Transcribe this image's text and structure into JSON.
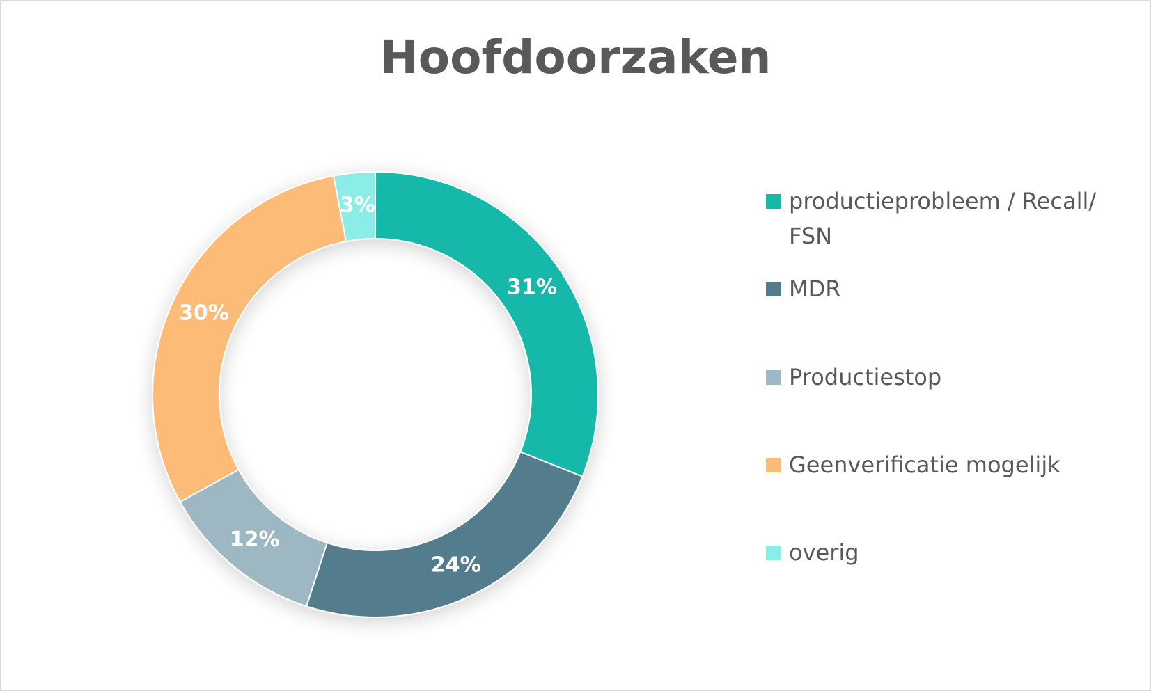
{
  "chart_data": {
    "type": "pie",
    "variant": "donut",
    "title": "Hoofdoorzaken",
    "categories": [
      "productieprobleem / Recall/ FSN",
      "MDR",
      "Productiestop",
      "Geenverificatie mogelijk",
      "overig"
    ],
    "values": [
      31,
      24,
      12,
      30,
      3
    ],
    "labels": [
      "31%",
      "24%",
      "12%",
      "30%",
      "3%"
    ],
    "colors": [
      "#15b8a9",
      "#537d8c",
      "#9db8c3",
      "#fdbb78",
      "#8cede6"
    ],
    "legend": "right",
    "start_angle": "top",
    "direction": "clockwise"
  }
}
